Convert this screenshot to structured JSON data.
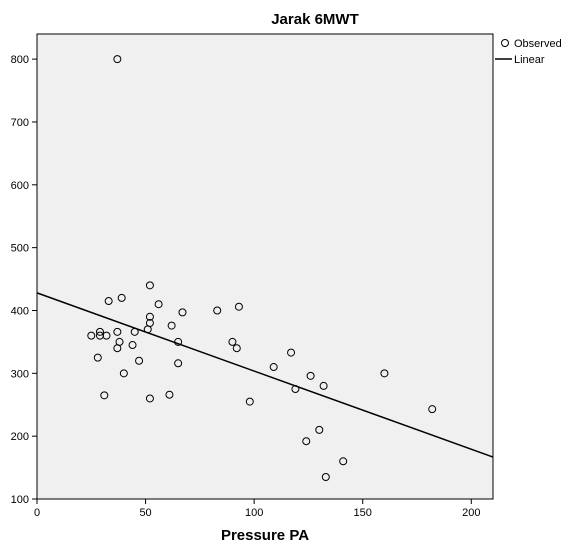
{
  "chart_data": {
    "type": "scatter",
    "title": "Jarak 6MWT",
    "xlabel": "Pressure PA",
    "ylabel": "",
    "xlim": [
      0,
      210
    ],
    "ylim": [
      100,
      840
    ],
    "xticks": [
      0,
      50,
      100,
      150,
      200
    ],
    "yticks": [
      100,
      200,
      300,
      400,
      500,
      600,
      700,
      800
    ],
    "grid": false,
    "legend_position": "top-right",
    "legend": [
      "Observed",
      "Linear"
    ],
    "plot_background": "#f0f0f0",
    "series": [
      {
        "name": "Observed",
        "kind": "points",
        "marker": "open-circle",
        "points": [
          [
            37,
            800
          ],
          [
            52,
            440
          ],
          [
            39,
            420
          ],
          [
            33,
            415
          ],
          [
            56,
            410
          ],
          [
            93,
            406
          ],
          [
            67,
            397
          ],
          [
            83,
            400
          ],
          [
            52,
            390
          ],
          [
            52,
            380
          ],
          [
            62,
            376
          ],
          [
            45,
            366
          ],
          [
            51,
            370
          ],
          [
            37,
            366
          ],
          [
            29,
            366
          ],
          [
            25,
            360
          ],
          [
            29,
            360
          ],
          [
            32,
            360
          ],
          [
            38,
            350
          ],
          [
            90,
            350
          ],
          [
            65,
            350
          ],
          [
            44,
            345
          ],
          [
            37,
            340
          ],
          [
            92,
            340
          ],
          [
            117,
            333
          ],
          [
            28,
            325
          ],
          [
            47,
            320
          ],
          [
            65,
            316
          ],
          [
            109,
            310
          ],
          [
            40,
            300
          ],
          [
            160,
            300
          ],
          [
            126,
            296
          ],
          [
            132,
            280
          ],
          [
            119,
            275
          ],
          [
            31,
            265
          ],
          [
            61,
            266
          ],
          [
            52,
            260
          ],
          [
            98,
            255
          ],
          [
            182,
            243
          ],
          [
            130,
            210
          ],
          [
            124,
            192
          ],
          [
            141,
            160
          ],
          [
            133,
            135
          ]
        ]
      },
      {
        "name": "Linear",
        "kind": "line",
        "intercept": 428,
        "slope": -1.244
      }
    ]
  }
}
